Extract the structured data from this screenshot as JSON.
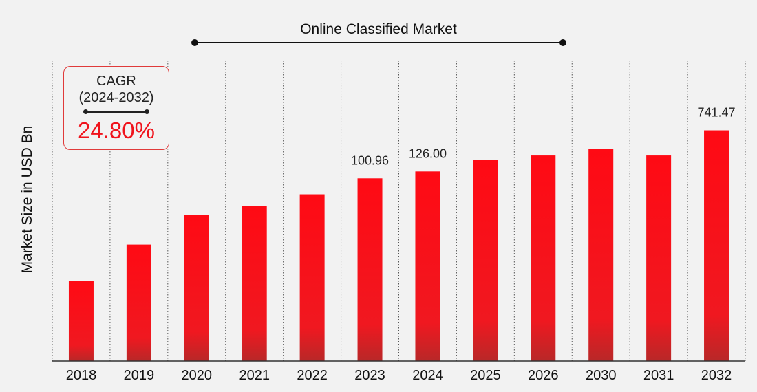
{
  "chart_data": {
    "type": "bar",
    "title": "Online Classified Market",
    "ylabel": "Market Size in USD Bn",
    "xlabel": "",
    "categories": [
      "2018",
      "2019",
      "2020",
      "2021",
      "2022",
      "2023",
      "2024",
      "2025",
      "2026",
      "2030",
      "2031",
      "2032"
    ],
    "values": [
      35,
      51,
      64,
      68,
      73,
      80,
      83,
      88,
      90,
      93,
      90,
      101
    ],
    "data_labels": [
      "",
      "",
      "",
      "",
      "",
      "100.96",
      "126.00",
      "",
      "",
      "",
      "",
      "741.47"
    ],
    "ylim": [
      0,
      140
    ],
    "y_axis_ticks_shown": false,
    "grid": "vertical dotted separators",
    "bar_gradient": [
      "#ff0a14",
      "#f01820",
      "#b82828"
    ],
    "title_line_color": "#111111"
  },
  "cagr": {
    "label": "CAGR",
    "period": "(2024-2032)",
    "value": "24.80%",
    "value_color": "#f0131c",
    "border_color": "#e03a3a"
  }
}
